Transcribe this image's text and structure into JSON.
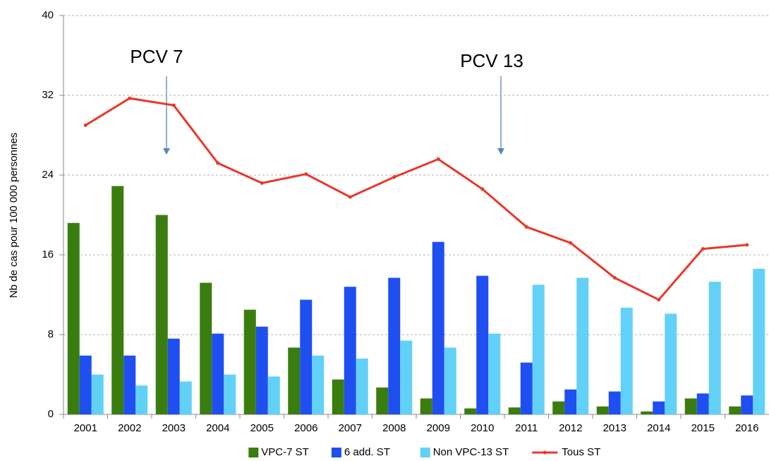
{
  "chart_data": {
    "type": "bar",
    "y_label": "Nb de cas pour 100 000 personnes",
    "annotations": [
      "PCV 7",
      "PCV 13"
    ],
    "categories": [
      "2001",
      "2002",
      "2003",
      "2004",
      "2005",
      "2006",
      "2007",
      "2008",
      "2009",
      "2010",
      "2011",
      "2012",
      "2013",
      "2014",
      "2015",
      "2016"
    ],
    "series": [
      {
        "name": "VPC-7 ST",
        "color": "#3a7d0f",
        "values": [
          19.2,
          22.9,
          20.0,
          13.2,
          10.5,
          6.7,
          3.5,
          2.7,
          1.6,
          0.6,
          0.7,
          1.3,
          0.8,
          0.3,
          1.6,
          0.8
        ]
      },
      {
        "name": "6 add. ST",
        "color": "#1f4ff0",
        "values": [
          5.9,
          5.9,
          7.6,
          8.1,
          8.8,
          11.5,
          12.8,
          13.7,
          17.3,
          13.9,
          5.2,
          2.5,
          2.3,
          1.3,
          2.1,
          1.9
        ]
      },
      {
        "name": "Non VPC-13 ST",
        "color": "#62d1f7",
        "values": [
          4.0,
          2.9,
          3.3,
          4.0,
          3.8,
          5.9,
          5.6,
          7.4,
          6.7,
          8.1,
          13.0,
          13.7,
          10.7,
          10.1,
          13.3,
          14.6
        ]
      },
      {
        "name": "Tous ST",
        "color": "#e8382a",
        "type": "line",
        "values": [
          29.0,
          31.7,
          31.0,
          25.2,
          23.2,
          24.1,
          21.8,
          23.8,
          25.6,
          22.6,
          18.8,
          17.2,
          13.7,
          11.5,
          16.6,
          17.0
        ]
      }
    ],
    "ylim": [
      0,
      40
    ],
    "yticks": [
      0,
      8,
      16,
      24,
      32,
      40
    ],
    "grid": true,
    "legend": "bottom"
  }
}
